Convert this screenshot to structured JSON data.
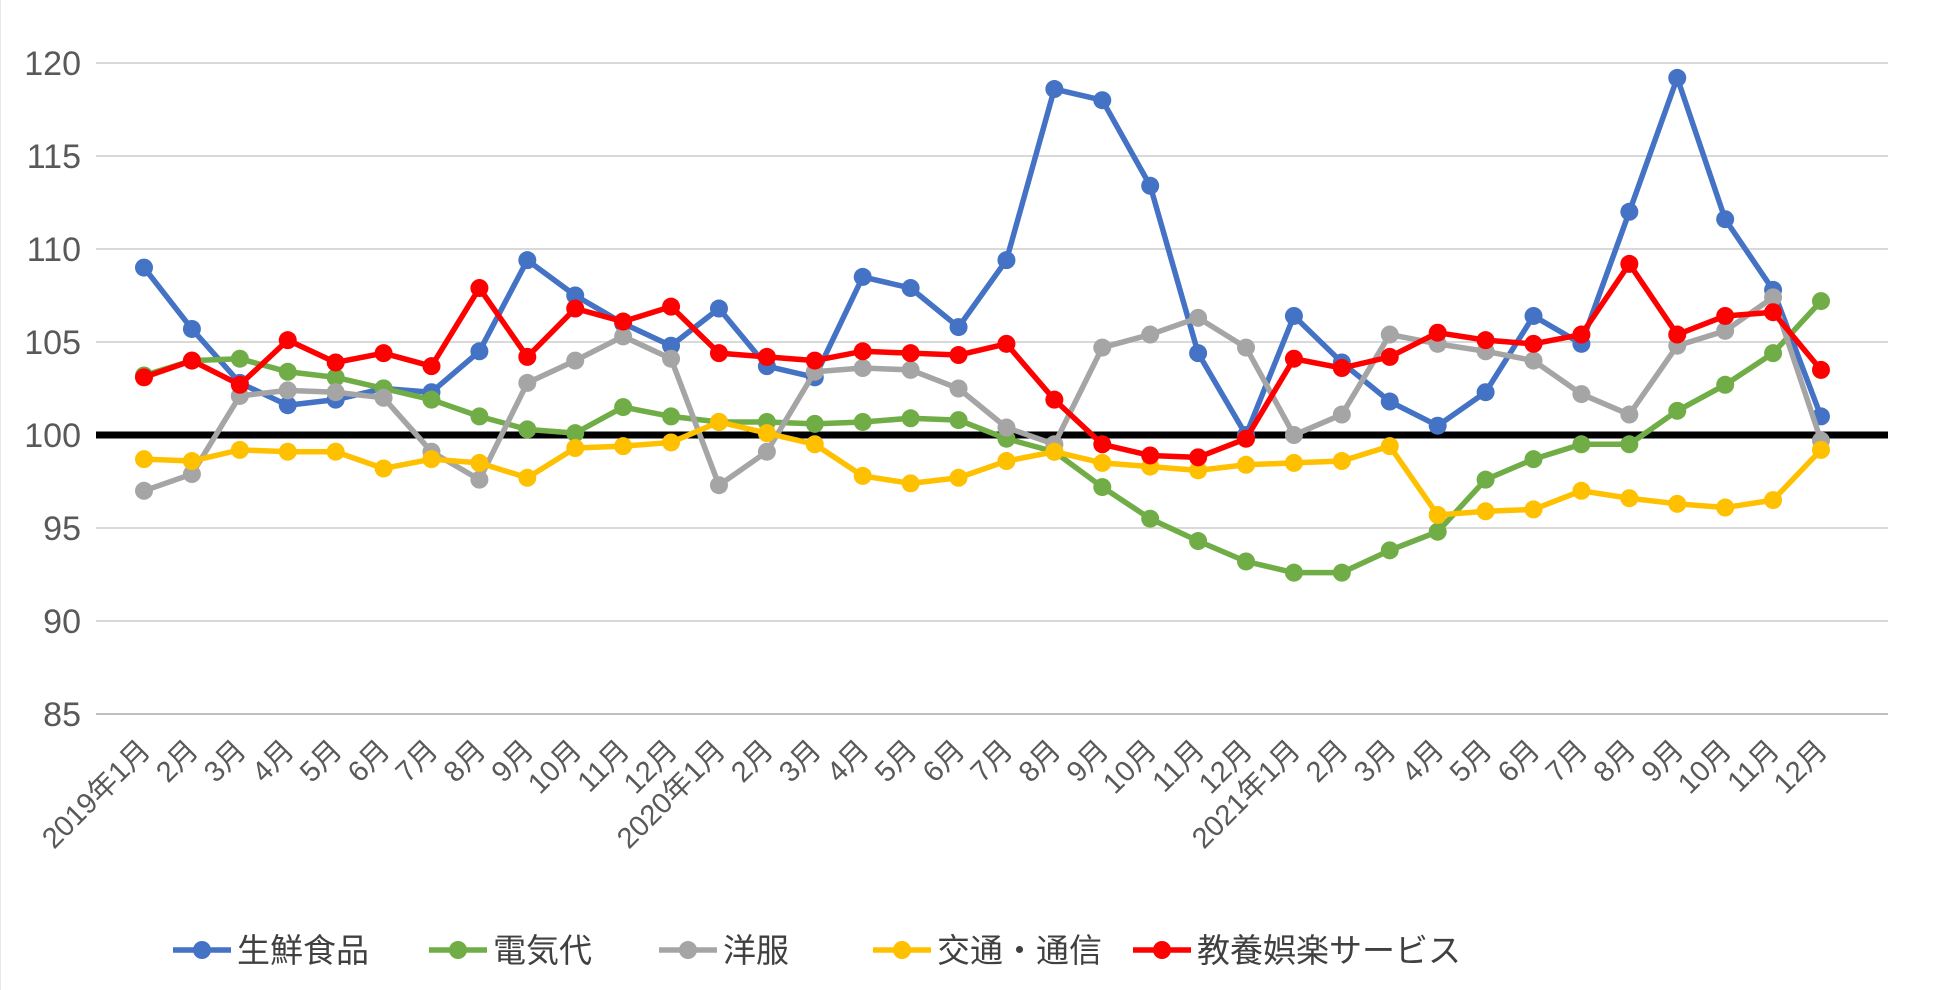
{
  "chart_data": {
    "type": "line",
    "title": "",
    "xlabel": "",
    "ylabel": "",
    "ylim": [
      85,
      120
    ],
    "yticks": [
      85,
      90,
      95,
      100,
      105,
      110,
      115,
      120
    ],
    "grid": "horizontal",
    "legend_position": "bottom",
    "baseline": {
      "value": 100,
      "color": "#000000"
    },
    "axis_text_color": "#595959",
    "gridline_color": "#D9D9D9",
    "axis_line_color": "#BFBFBF",
    "legend_text_color": "#404040",
    "x": [
      "2019年1月",
      "2月",
      "3月",
      "4月",
      "5月",
      "6月",
      "7月",
      "8月",
      "9月",
      "10月",
      "11月",
      "12月",
      "2020年1月",
      "2月",
      "3月",
      "4月",
      "5月",
      "6月",
      "7月",
      "8月",
      "9月",
      "10月",
      "11月",
      "12月",
      "2021年1月",
      "2月",
      "3月",
      "4月",
      "5月",
      "6月",
      "7月",
      "8月",
      "9月",
      "10月",
      "11月",
      "12月"
    ],
    "series": [
      {
        "key": "fresh-food",
        "name": "生鮮食品",
        "color": "#4472C4",
        "values": [
          109.0,
          105.7,
          102.8,
          101.6,
          101.9,
          102.5,
          102.3,
          104.5,
          109.4,
          107.5,
          106.0,
          104.8,
          106.8,
          103.7,
          103.1,
          108.5,
          107.9,
          105.8,
          109.4,
          118.6,
          118.0,
          113.4,
          104.4,
          100.0,
          106.4,
          103.9,
          101.8,
          100.5,
          102.3,
          106.4,
          104.9,
          112.0,
          119.2,
          111.6,
          107.8,
          101.0
        ]
      },
      {
        "key": "electricity",
        "name": "電気代",
        "color": "#70AD47",
        "values": [
          103.2,
          104.0,
          104.1,
          103.4,
          103.1,
          102.5,
          101.9,
          101.0,
          100.3,
          100.1,
          101.5,
          101.0,
          100.7,
          100.7,
          100.6,
          100.7,
          100.9,
          100.8,
          99.8,
          99.1,
          97.2,
          95.5,
          94.3,
          93.2,
          92.6,
          92.6,
          93.8,
          94.8,
          97.6,
          98.7,
          99.5,
          99.5,
          101.3,
          102.7,
          104.4,
          107.2
        ]
      },
      {
        "key": "clothing",
        "name": "洋服",
        "color": "#A5A5A5",
        "values": [
          97.0,
          97.9,
          102.1,
          102.4,
          102.3,
          102.0,
          99.1,
          97.6,
          102.8,
          104.0,
          105.3,
          104.1,
          97.3,
          99.1,
          103.4,
          103.6,
          103.5,
          102.5,
          100.4,
          99.5,
          104.7,
          105.4,
          106.3,
          104.7,
          100.0,
          101.1,
          105.4,
          104.9,
          104.5,
          104.0,
          102.2,
          101.1,
          104.8,
          105.6,
          107.4,
          99.7
        ]
      },
      {
        "key": "transport-communication",
        "name": "交通・通信",
        "color": "#FFC000",
        "values": [
          98.7,
          98.6,
          99.2,
          99.1,
          99.1,
          98.2,
          98.7,
          98.5,
          97.7,
          99.3,
          99.4,
          99.6,
          100.7,
          100.1,
          99.5,
          97.8,
          97.4,
          97.7,
          98.6,
          99.1,
          98.5,
          98.3,
          98.1,
          98.4,
          98.5,
          98.6,
          99.4,
          95.7,
          95.9,
          96.0,
          97.0,
          96.6,
          96.3,
          96.1,
          96.5,
          99.2
        ]
      },
      {
        "key": "culture-recreation-services",
        "name": "教養娯楽サービス",
        "color": "#FF0000",
        "values": [
          103.1,
          104.0,
          102.7,
          105.1,
          103.9,
          104.4,
          103.7,
          107.9,
          104.2,
          106.8,
          106.1,
          106.9,
          104.4,
          104.2,
          104.0,
          104.5,
          104.4,
          104.3,
          104.9,
          101.9,
          99.5,
          98.9,
          98.8,
          99.8,
          104.1,
          103.6,
          104.2,
          105.5,
          105.1,
          104.9,
          105.4,
          109.2,
          105.4,
          106.4,
          106.6,
          103.5
        ]
      }
    ]
  }
}
